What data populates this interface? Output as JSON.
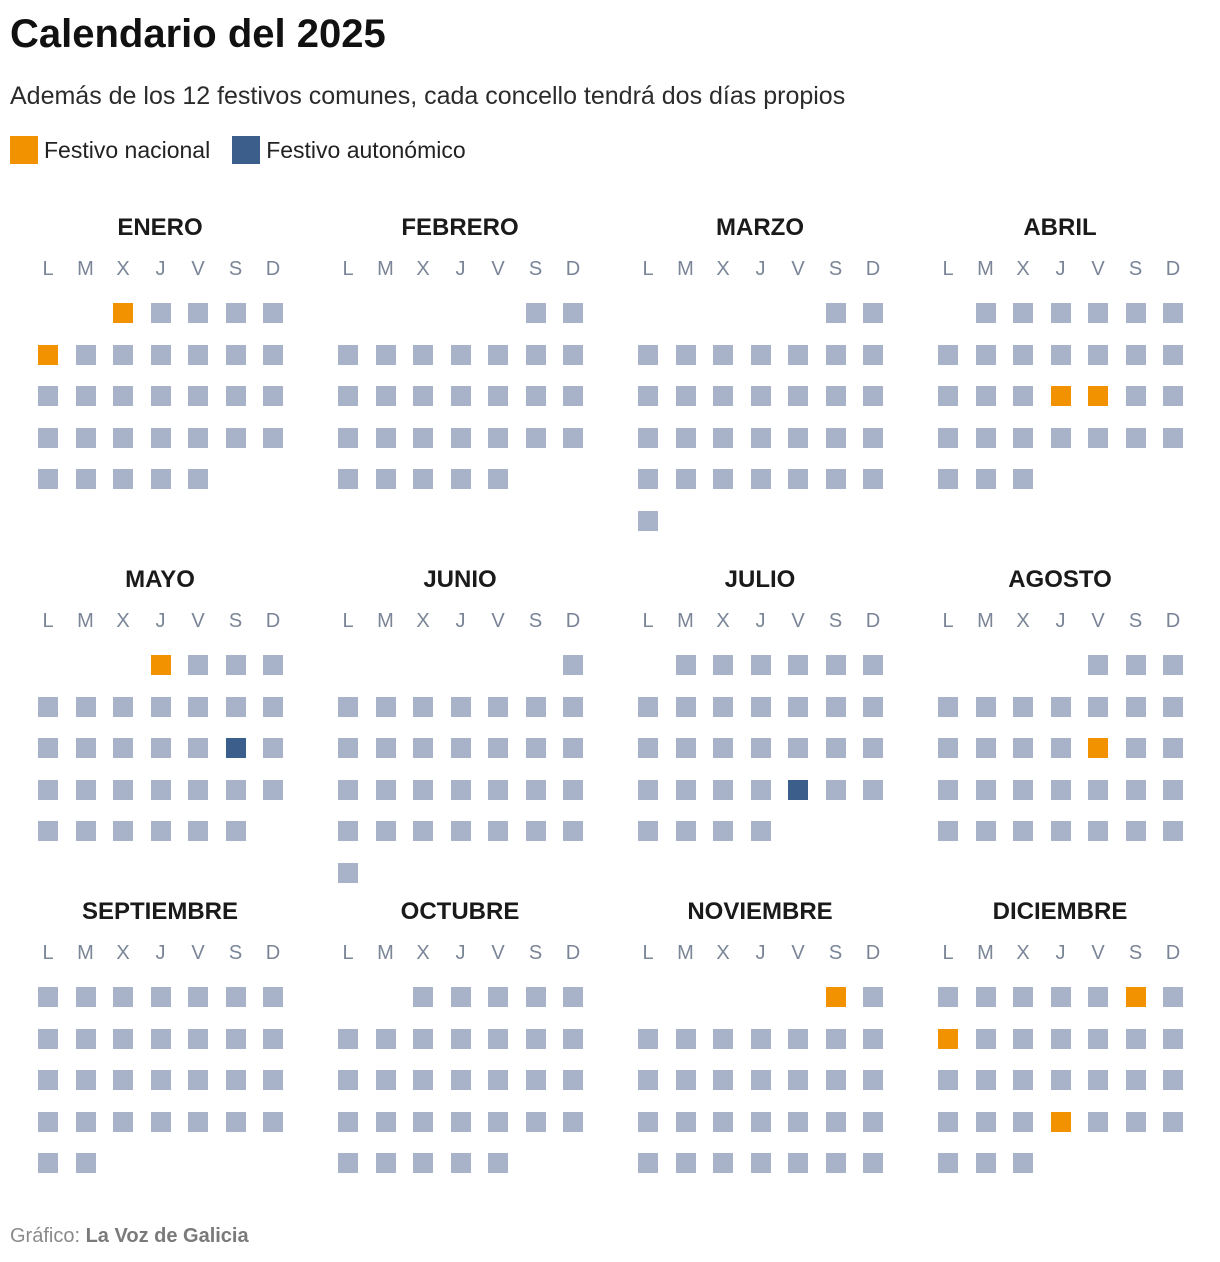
{
  "title": "Calendario del 2025",
  "subtitle": "Además de los 12 festivos comunes, cada concello tendrá dos días propios",
  "legend": [
    {
      "label": "Festivo nacional",
      "color": "#f39200"
    },
    {
      "label": "Festivo autonómico",
      "color": "#3b5f8a"
    }
  ],
  "colors": {
    "regular_day": "#a8b3ca",
    "national": "#f39200",
    "regional": "#3b5f8a"
  },
  "weekday_labels": [
    "L",
    "M",
    "X",
    "J",
    "V",
    "S",
    "D"
  ],
  "source": {
    "prefix": "Gráfico:",
    "name": "La Voz de Galicia"
  },
  "chart_data": {
    "type": "table",
    "year": 2025,
    "months": [
      {
        "name": "ENERO",
        "days": 31,
        "start_weekday": "X",
        "national_holidays": [
          1,
          6
        ],
        "regional_holidays": []
      },
      {
        "name": "FEBRERO",
        "days": 28,
        "start_weekday": "S",
        "national_holidays": [],
        "regional_holidays": []
      },
      {
        "name": "MARZO",
        "days": 31,
        "start_weekday": "S",
        "national_holidays": [],
        "regional_holidays": []
      },
      {
        "name": "ABRIL",
        "days": 30,
        "start_weekday": "M",
        "national_holidays": [
          17,
          18
        ],
        "regional_holidays": []
      },
      {
        "name": "MAYO",
        "days": 31,
        "start_weekday": "J",
        "national_holidays": [
          1
        ],
        "regional_holidays": [
          17
        ]
      },
      {
        "name": "JUNIO",
        "days": 30,
        "start_weekday": "D",
        "national_holidays": [],
        "regional_holidays": []
      },
      {
        "name": "JULIO",
        "days": 31,
        "start_weekday": "M",
        "national_holidays": [],
        "regional_holidays": [
          25
        ]
      },
      {
        "name": "AGOSTO",
        "days": 31,
        "start_weekday": "V",
        "national_holidays": [
          15
        ],
        "regional_holidays": []
      },
      {
        "name": "SEPTIEMBRE",
        "days": 30,
        "start_weekday": "L",
        "national_holidays": [],
        "regional_holidays": []
      },
      {
        "name": "OCTUBRE",
        "days": 31,
        "start_weekday": "X",
        "national_holidays": [],
        "regional_holidays": []
      },
      {
        "name": "NOVIEMBRE",
        "days": 30,
        "start_weekday": "S",
        "national_holidays": [
          1
        ],
        "regional_holidays": []
      },
      {
        "name": "DICIEMBRE",
        "days": 31,
        "start_weekday": "L",
        "national_holidays": [
          6,
          8,
          25
        ],
        "regional_holidays": []
      }
    ]
  }
}
